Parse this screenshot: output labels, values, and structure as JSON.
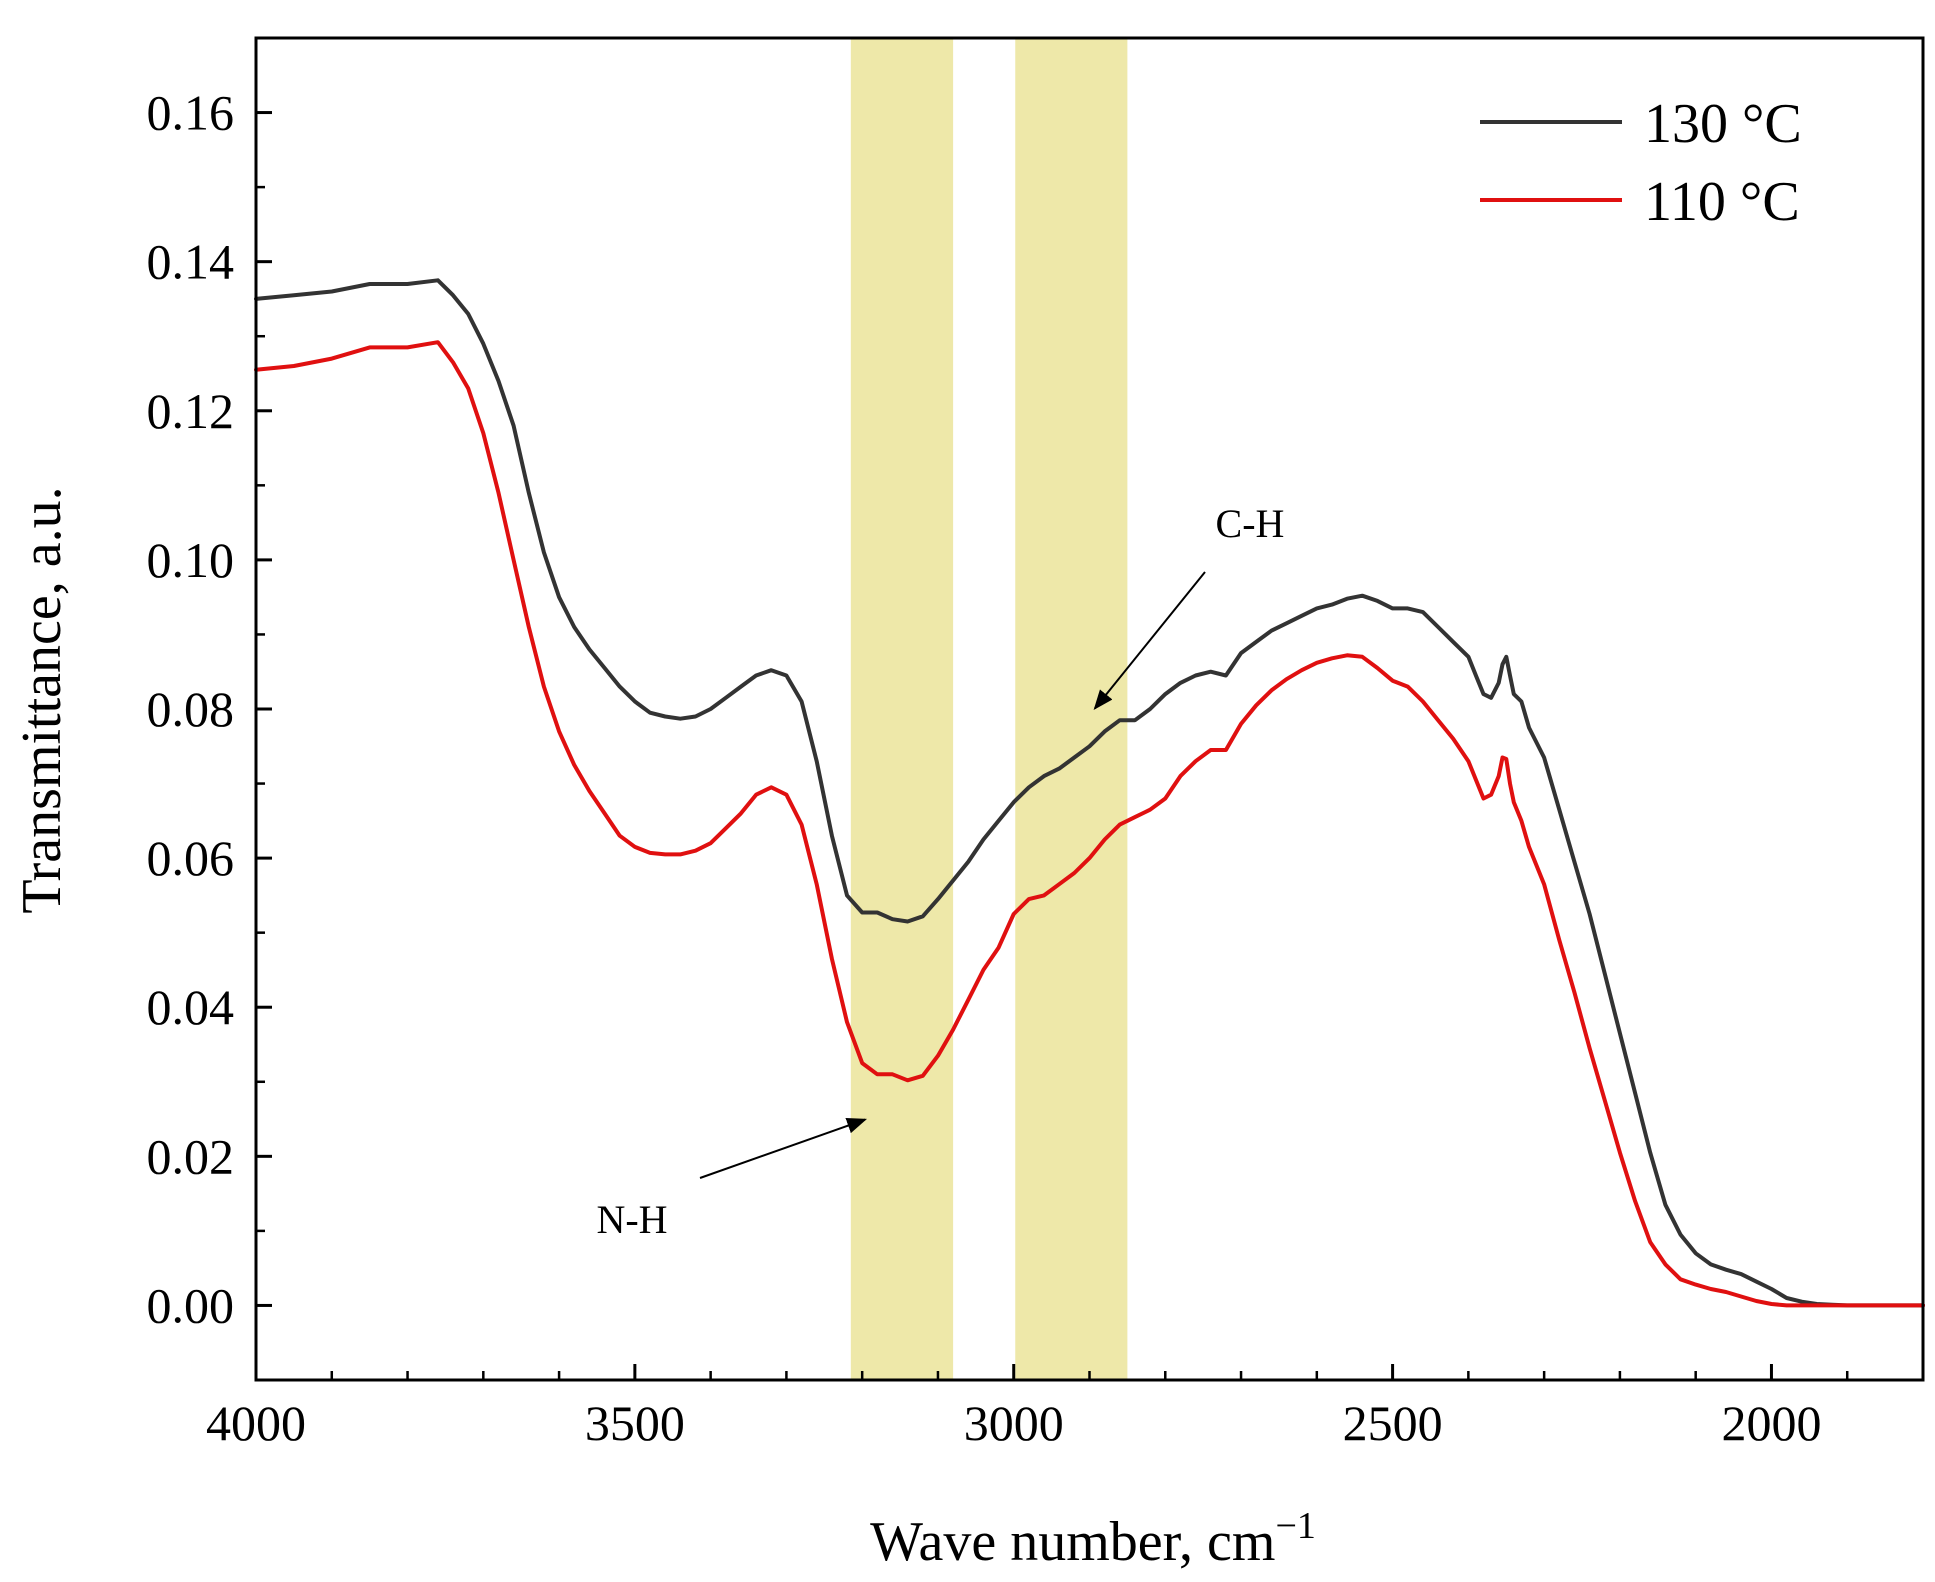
{
  "chart_data": {
    "type": "line",
    "xlabel": "Wave number, cm",
    "xlabel_superscript": "−1",
    "ylabel": "Transmittance, a.u.",
    "xlim": [
      4000,
      1800
    ],
    "ylim": [
      -0.01,
      0.17
    ],
    "x_ticks": [
      4000,
      3500,
      3000,
      2500,
      2000
    ],
    "x_tick_labels": [
      "4000",
      "3500",
      "3000",
      "2500",
      "2000"
    ],
    "y_ticks": [
      0.0,
      0.02,
      0.04,
      0.06,
      0.08,
      0.1,
      0.12,
      0.14,
      0.16
    ],
    "y_tick_labels": [
      "0.00",
      "0.02",
      "0.04",
      "0.06",
      "0.08",
      "0.10",
      "0.12",
      "0.14",
      "0.16"
    ],
    "grid": false,
    "legend_position": "top-right",
    "highlight_bands": [
      {
        "x_from": 3215,
        "x_to": 3080,
        "color": "#eee8a9"
      },
      {
        "x_from": 2998,
        "x_to": 2850,
        "color": "#eee8a9"
      }
    ],
    "annotations": [
      {
        "text": "C-H",
        "x": 2885,
        "y": 0.079
      },
      {
        "text": "N-H",
        "x": 3175,
        "y": 0.026
      }
    ],
    "series": [
      {
        "name": "130 °C",
        "color": "#333333",
        "x": [
          4000,
          3950,
          3900,
          3850,
          3800,
          3760,
          3740,
          3720,
          3700,
          3680,
          3660,
          3640,
          3620,
          3600,
          3580,
          3560,
          3540,
          3520,
          3500,
          3480,
          3460,
          3440,
          3420,
          3400,
          3380,
          3360,
          3340,
          3320,
          3300,
          3280,
          3260,
          3240,
          3220,
          3200,
          3180,
          3160,
          3140,
          3120,
          3100,
          3080,
          3060,
          3040,
          3020,
          3000,
          2980,
          2960,
          2940,
          2920,
          2900,
          2880,
          2860,
          2840,
          2820,
          2800,
          2780,
          2760,
          2740,
          2720,
          2700,
          2680,
          2660,
          2640,
          2620,
          2600,
          2580,
          2560,
          2540,
          2520,
          2500,
          2480,
          2460,
          2440,
          2420,
          2400,
          2390,
          2380,
          2370,
          2360,
          2355,
          2350,
          2345,
          2340,
          2330,
          2320,
          2300,
          2280,
          2260,
          2240,
          2220,
          2200,
          2180,
          2160,
          2140,
          2120,
          2100,
          2080,
          2060,
          2040,
          2020,
          2000,
          1980,
          1960,
          1940,
          1920,
          1900,
          1880,
          1860,
          1840,
          1820,
          1800
        ],
        "values": [
          0.135,
          0.1355,
          0.136,
          0.137,
          0.137,
          0.1375,
          0.1355,
          0.133,
          0.129,
          0.124,
          0.118,
          0.109,
          0.101,
          0.095,
          0.091,
          0.088,
          0.0855,
          0.083,
          0.081,
          0.0795,
          0.079,
          0.0787,
          0.079,
          0.08,
          0.0815,
          0.083,
          0.0845,
          0.0852,
          0.0845,
          0.081,
          0.073,
          0.063,
          0.055,
          0.0527,
          0.0527,
          0.0518,
          0.0515,
          0.0522,
          0.0545,
          0.057,
          0.0595,
          0.0625,
          0.065,
          0.0675,
          0.0695,
          0.071,
          0.072,
          0.0735,
          0.075,
          0.077,
          0.0785,
          0.0785,
          0.08,
          0.082,
          0.0835,
          0.0845,
          0.085,
          0.0845,
          0.0875,
          0.089,
          0.0905,
          0.0915,
          0.0925,
          0.0935,
          0.094,
          0.0948,
          0.0952,
          0.0945,
          0.0935,
          0.0935,
          0.093,
          0.091,
          0.089,
          0.087,
          0.0845,
          0.082,
          0.0815,
          0.0835,
          0.086,
          0.087,
          0.0845,
          0.082,
          0.081,
          0.0775,
          0.0735,
          0.0665,
          0.0595,
          0.0525,
          0.0445,
          0.0365,
          0.0285,
          0.0205,
          0.0135,
          0.0095,
          0.007,
          0.0055,
          0.0048,
          0.0042,
          0.0032,
          0.0022,
          0.001,
          0.0005,
          0.0002,
          0.0001,
          0.0,
          0.0,
          0.0,
          0.0,
          0.0,
          0.0
        ]
      },
      {
        "name": "110 °C",
        "color": "#e01010",
        "x": [
          4000,
          3950,
          3900,
          3850,
          3800,
          3760,
          3740,
          3720,
          3700,
          3680,
          3660,
          3640,
          3620,
          3600,
          3580,
          3560,
          3540,
          3520,
          3500,
          3480,
          3460,
          3440,
          3420,
          3400,
          3380,
          3360,
          3340,
          3320,
          3300,
          3280,
          3260,
          3240,
          3220,
          3200,
          3180,
          3160,
          3140,
          3120,
          3100,
          3080,
          3060,
          3040,
          3020,
          3000,
          2980,
          2960,
          2940,
          2920,
          2900,
          2880,
          2860,
          2840,
          2820,
          2800,
          2780,
          2760,
          2740,
          2720,
          2700,
          2680,
          2660,
          2640,
          2620,
          2600,
          2580,
          2560,
          2540,
          2520,
          2500,
          2480,
          2460,
          2440,
          2420,
          2400,
          2390,
          2380,
          2370,
          2360,
          2355,
          2350,
          2345,
          2340,
          2330,
          2320,
          2300,
          2280,
          2260,
          2240,
          2220,
          2200,
          2180,
          2160,
          2140,
          2120,
          2100,
          2080,
          2060,
          2040,
          2020,
          2000,
          1980,
          1960,
          1940,
          1920,
          1900,
          1880,
          1860,
          1840,
          1820,
          1800
        ],
        "values": [
          0.1255,
          0.126,
          0.127,
          0.1285,
          0.1285,
          0.1292,
          0.1265,
          0.123,
          0.117,
          0.109,
          0.1,
          0.091,
          0.083,
          0.077,
          0.0725,
          0.069,
          0.066,
          0.063,
          0.0615,
          0.0607,
          0.0605,
          0.0605,
          0.061,
          0.062,
          0.064,
          0.066,
          0.0685,
          0.0695,
          0.0685,
          0.0645,
          0.0565,
          0.0465,
          0.038,
          0.0325,
          0.031,
          0.031,
          0.0302,
          0.0308,
          0.0335,
          0.037,
          0.041,
          0.045,
          0.048,
          0.0525,
          0.0545,
          0.055,
          0.0565,
          0.058,
          0.06,
          0.0625,
          0.0645,
          0.0655,
          0.0665,
          0.068,
          0.071,
          0.073,
          0.0745,
          0.0745,
          0.078,
          0.0805,
          0.0825,
          0.084,
          0.0852,
          0.0862,
          0.0868,
          0.0872,
          0.087,
          0.0855,
          0.0838,
          0.083,
          0.081,
          0.0785,
          0.076,
          0.073,
          0.0705,
          0.068,
          0.0685,
          0.071,
          0.0735,
          0.0733,
          0.07,
          0.0675,
          0.065,
          0.0615,
          0.0565,
          0.049,
          0.042,
          0.0345,
          0.0275,
          0.0205,
          0.014,
          0.0085,
          0.0055,
          0.0035,
          0.0028,
          0.0022,
          0.0018,
          0.0012,
          0.0006,
          0.0002,
          0.0,
          0.0,
          0.0,
          0.0,
          0.0,
          0.0,
          0.0,
          0.0,
          0.0,
          0.0
        ]
      }
    ]
  }
}
